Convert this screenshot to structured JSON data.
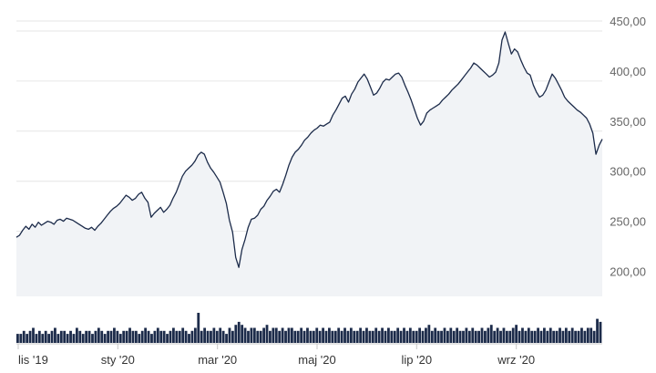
{
  "chart_data": {
    "type": "line",
    "title": "",
    "xlabel": "",
    "ylabel": "",
    "y_tick_labels": [
      "200,00",
      "250,00",
      "300,00",
      "350,00",
      "400,00",
      "450,00"
    ],
    "y_tick_values": [
      200,
      250,
      300,
      350,
      400,
      450
    ],
    "x_tick_labels": [
      "lis '19",
      "sty '20",
      "mar '20",
      "maj '20",
      "lip '20",
      "wrz '20"
    ],
    "ylim": [
      185,
      460
    ],
    "grid": true,
    "legend": "none",
    "colors": {
      "line": "#1c2b4a",
      "area": "#f1f3f6",
      "grid": "#e6e6e6",
      "volume": "#1c2b4a"
    },
    "series": [
      {
        "values": [
          244,
          246,
          251,
          255,
          252,
          257,
          254,
          259,
          256,
          258,
          260,
          259,
          257,
          261,
          262,
          260,
          263,
          262,
          261,
          259,
          257,
          255,
          253,
          252,
          254,
          251,
          255,
          258,
          262,
          266,
          270,
          273,
          275,
          278,
          282,
          286,
          284,
          281,
          283,
          287,
          289,
          283,
          279,
          264,
          268,
          271,
          274,
          269,
          272,
          276,
          283,
          289,
          297,
          305,
          310,
          313,
          316,
          320,
          326,
          329,
          327,
          319,
          313,
          309,
          304,
          299,
          289,
          278,
          261,
          249,
          224,
          214,
          232,
          242,
          254,
          262,
          263,
          266,
          272,
          275,
          281,
          285,
          290,
          292,
          289,
          297,
          306,
          316,
          324,
          329,
          332,
          336,
          341,
          344,
          348,
          351,
          353,
          356,
          355,
          357,
          359,
          366,
          371,
          377,
          383,
          385,
          379,
          387,
          392,
          399,
          403,
          407,
          402,
          394,
          386,
          388,
          393,
          399,
          402,
          401,
          404,
          407,
          408,
          404,
          396,
          389,
          381,
          372,
          363,
          356,
          360,
          368,
          371,
          373,
          375,
          377,
          381,
          384,
          387,
          391,
          394,
          397,
          401,
          405,
          409,
          413,
          418,
          416,
          413,
          410,
          407,
          404,
          406,
          409,
          418,
          441,
          449,
          438,
          427,
          432,
          429,
          421,
          414,
          408,
          406,
          396,
          389,
          384,
          386,
          391,
          399,
          407,
          403,
          397,
          391,
          384,
          380,
          377,
          374,
          371,
          369,
          366,
          363,
          357,
          348,
          327,
          336,
          342
        ]
      }
    ],
    "volume": [
      3,
      3,
      4,
      3,
      4,
      5,
      3,
      4,
      3,
      4,
      3,
      4,
      5,
      3,
      4,
      4,
      3,
      4,
      3,
      5,
      4,
      3,
      4,
      4,
      3,
      4,
      5,
      4,
      3,
      4,
      4,
      5,
      4,
      3,
      4,
      4,
      5,
      4,
      4,
      3,
      4,
      5,
      4,
      3,
      4,
      5,
      4,
      4,
      3,
      4,
      5,
      4,
      4,
      5,
      4,
      3,
      4,
      5,
      10,
      4,
      5,
      4,
      4,
      5,
      4,
      5,
      4,
      3,
      5,
      4,
      6,
      7,
      6,
      5,
      4,
      5,
      5,
      4,
      4,
      5,
      6,
      4,
      5,
      5,
      4,
      5,
      4,
      5,
      5,
      4,
      4,
      5,
      4,
      5,
      4,
      4,
      5,
      4,
      5,
      4,
      5,
      4,
      4,
      5,
      4,
      5,
      4,
      5,
      4,
      4,
      5,
      4,
      5,
      4,
      4,
      5,
      4,
      5,
      4,
      5,
      4,
      4,
      5,
      4,
      5,
      4,
      5,
      4,
      4,
      5,
      4,
      5,
      6,
      4,
      5,
      4,
      4,
      5,
      4,
      5,
      4,
      5,
      4,
      4,
      5,
      4,
      5,
      4,
      4,
      5,
      4,
      5,
      6,
      4,
      5,
      4,
      5,
      4,
      4,
      5,
      6,
      4,
      5,
      4,
      5,
      4,
      4,
      5,
      4,
      5,
      4,
      5,
      4,
      4,
      5,
      4,
      5,
      4,
      5,
      4,
      4,
      5,
      4,
      5,
      5,
      4,
      8,
      7
    ]
  }
}
